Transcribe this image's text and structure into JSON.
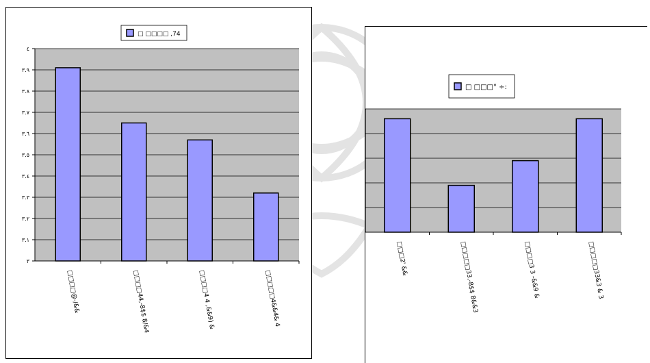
{
  "colors": {
    "bar_fill": "#9999ff",
    "bar_stroke": "#000000",
    "plot_bg": "#c0c0c0",
    "gridline": "#000000",
    "watermark": "#d8d8d8"
  },
  "chart_data": [
    {
      "type": "bar",
      "title": "",
      "xlabel": "",
      "ylabel": "",
      "legend": {
        "label": "□ □□□□ ,74",
        "position": "top-center"
      },
      "categories": [
        "□□□□@-/&&",
        "□□□□44,-8$$ 8/&4",
        "□□□□4 4 ,&&9) &",
        "□□□□□4&&4& 4"
      ],
      "values": [
        3.91,
        3.65,
        3.57,
        3.32
      ],
      "ylim": [
        3.0,
        4.0
      ],
      "yticks": [
        "٣",
        "٣.١",
        "٣.٢",
        "٣.٣",
        "٣.٤",
        "٣.٥",
        "٣.٦",
        "٣.٧",
        "٣.٨",
        "٣.٩",
        "٤"
      ],
      "grid": true
    },
    {
      "type": "bar",
      "title": "",
      "xlabel": "",
      "ylabel": "",
      "legend": {
        "label": "□ □□□° ÷:",
        "position": "top-left"
      },
      "categories": [
        "□□□2' &&",
        "□□□□□33,-8$$ 8&&3",
        "□□□□3 3 -&&9 &",
        "□□□□□33&3 & 3"
      ],
      "values": [
        4.6,
        1.9,
        2.9,
        4.6
      ],
      "ylim": [
        0,
        5
      ],
      "yticks": [],
      "grid": true
    }
  ]
}
